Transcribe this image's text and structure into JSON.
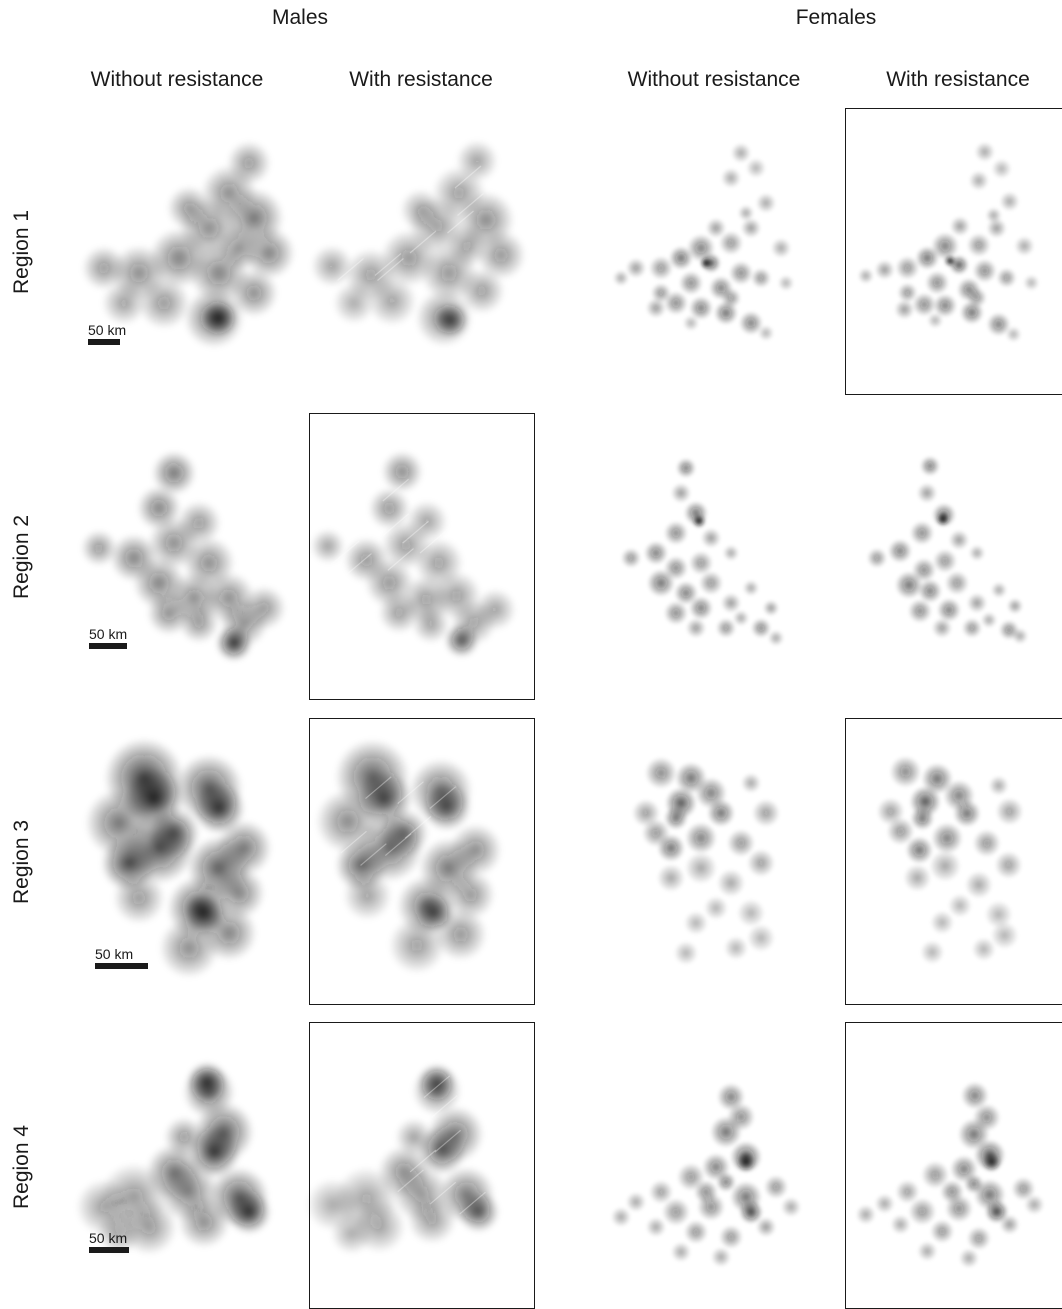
{
  "groups": {
    "males": "Males",
    "females": "Females"
  },
  "columns": {
    "without": "Without resistance",
    "with": "With resistance"
  },
  "rows": [
    {
      "label": "Region 1",
      "scale_label": "50 km"
    },
    {
      "label": "Region 2",
      "scale_label": "50 km"
    },
    {
      "label": "Region 3",
      "scale_label": "50 km"
    },
    {
      "label": "Region 4",
      "scale_label": "50 km"
    }
  ],
  "framed_panels": [
    "region1-females-with",
    "region2-males-with",
    "region3-males-with",
    "region3-females-with",
    "region4-males-with",
    "region4-females-with"
  ],
  "colors": {
    "density_dark": "#111111",
    "frame": "#1a1a1a",
    "background": "#ffffff"
  }
}
